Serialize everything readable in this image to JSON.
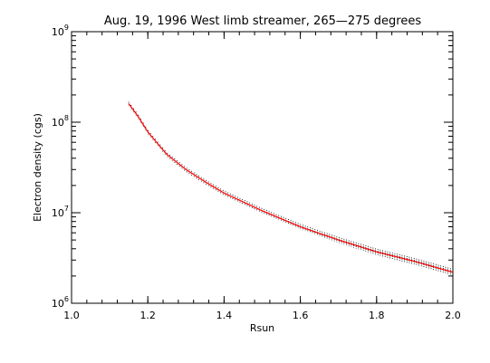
{
  "chart_data": {
    "type": "line",
    "title": "Aug. 19, 1996 West limb streamer, 265—275 degrees",
    "xlabel": "Rsun",
    "ylabel": "Electron density (cgs)",
    "xlim": [
      1.0,
      2.0
    ],
    "ylim": [
      1000000,
      1000000000
    ],
    "yscale": "log",
    "grid": false,
    "x_ticks": [
      "1.0",
      "1.2",
      "1.4",
      "1.6",
      "1.8",
      "2.0"
    ],
    "y_ticks": [
      {
        "base": "10",
        "exp": "6"
      },
      {
        "base": "10",
        "exp": "7"
      },
      {
        "base": "10",
        "exp": "8"
      },
      {
        "base": "10",
        "exp": "9"
      }
    ],
    "series": [
      {
        "style": "error-bar markers",
        "color": "#000000",
        "x": [
          1.15,
          1.175,
          1.2,
          1.25,
          1.3,
          1.35,
          1.4,
          1.5,
          1.6,
          1.7,
          1.8,
          1.9,
          2.0
        ],
        "y": [
          160000000,
          115000000,
          78000000,
          44000000,
          30000000,
          22000000,
          16500000,
          10500000,
          7000000,
          5000000,
          3700000,
          2900000,
          2200000
        ]
      },
      {
        "style": "fit line",
        "color": "#ff0000",
        "x": [
          1.15,
          1.175,
          1.2,
          1.25,
          1.3,
          1.35,
          1.4,
          1.5,
          1.6,
          1.7,
          1.8,
          1.9,
          2.0
        ],
        "y": [
          160000000,
          115000000,
          78000000,
          44000000,
          30000000,
          22000000,
          16500000,
          10500000,
          7000000,
          5000000,
          3700000,
          2900000,
          2200000
        ]
      }
    ]
  }
}
